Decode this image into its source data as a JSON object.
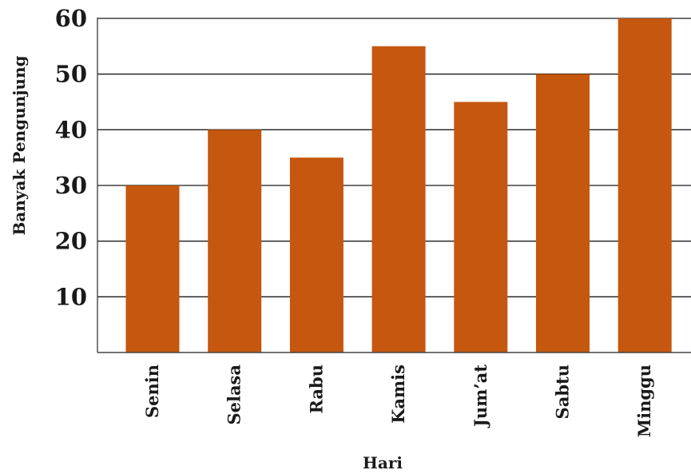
{
  "chart_data": {
    "type": "bar",
    "categories": [
      "Senin",
      "Selasa",
      "Rabu",
      "Kamis",
      "Jum’at",
      "Sabtu",
      "Minggu"
    ],
    "values": [
      30,
      40,
      35,
      55,
      45,
      50,
      60
    ],
    "xlabel": "Hari",
    "ylabel": "Banyak Pengunjung",
    "ylim": [
      0,
      60
    ],
    "yticks": [
      10,
      20,
      30,
      40,
      50,
      60
    ],
    "grid": true,
    "legend": "none",
    "bar_color": "#C5570F"
  }
}
